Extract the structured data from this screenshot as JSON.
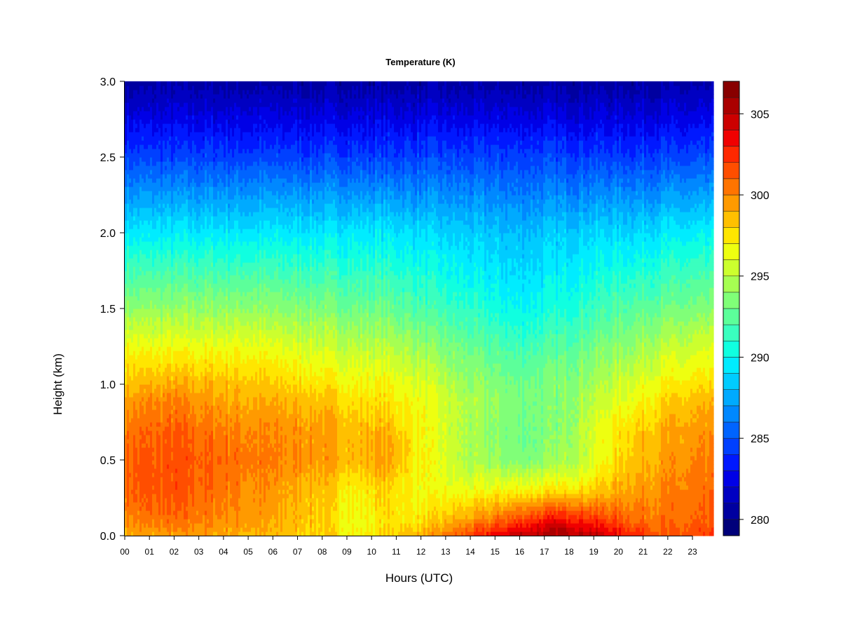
{
  "chart_data": {
    "type": "heatmap",
    "title": "Temperature (K)",
    "xlabel": "Hours (UTC)",
    "ylabel": "Height (km)",
    "x_ticks": [
      "00",
      "01",
      "02",
      "03",
      "04",
      "05",
      "06",
      "07",
      "08",
      "09",
      "10",
      "11",
      "12",
      "13",
      "14",
      "15",
      "16",
      "17",
      "18",
      "19",
      "20",
      "21",
      "22",
      "23"
    ],
    "xlim": [
      0,
      23.85
    ],
    "y_ticks": [
      "0.0",
      "0.5",
      "1.0",
      "1.5",
      "2.0",
      "2.5",
      "3.0"
    ],
    "ylim": [
      0,
      3.0
    ],
    "colorbar": {
      "ticks": [
        "280",
        "285",
        "290",
        "295",
        "300",
        "305"
      ],
      "range": [
        279,
        307
      ],
      "levels": [
        279,
        280,
        281,
        282,
        283,
        284,
        285,
        286,
        287,
        288,
        289,
        290,
        291,
        292,
        293,
        294,
        295,
        296,
        297,
        298,
        299,
        300,
        301,
        302,
        303,
        304,
        305,
        306,
        307
      ],
      "colors": [
        "#00007a",
        "#0000a0",
        "#0000c2",
        "#0000e6",
        "#0018ff",
        "#0040ff",
        "#0064ff",
        "#0088ff",
        "#00aaff",
        "#00ccff",
        "#00ecff",
        "#10ffe0",
        "#3affbf",
        "#5cff9a",
        "#80ff78",
        "#a6ff52",
        "#ccff2e",
        "#eeff10",
        "#ffe600",
        "#ffc000",
        "#ff9a00",
        "#ff7400",
        "#ff4e00",
        "#ff2800",
        "#f00000",
        "#cc0000",
        "#aa0000",
        "#880000"
      ]
    },
    "series": [
      {
        "name": "00",
        "x": 0,
        "profile_height_km": [
          0.0,
          0.1,
          0.3,
          0.5,
          0.7,
          0.9,
          1.0,
          1.2,
          1.5,
          2.0,
          2.5,
          3.0
        ],
        "profile_temp_K": [
          299,
          300,
          301,
          301,
          300.5,
          299.5,
          298.5,
          297,
          294,
          289.5,
          284.5,
          280.5
        ]
      },
      {
        "name": "02",
        "x": 2,
        "profile_height_km": [
          0.0,
          0.1,
          0.3,
          0.5,
          0.7,
          0.9,
          1.0,
          1.2,
          1.5,
          2.0,
          2.5,
          3.0
        ],
        "profile_temp_K": [
          299.5,
          300.5,
          301.5,
          301.5,
          301,
          300,
          299,
          297,
          294,
          289.5,
          284.5,
          280.5
        ]
      },
      {
        "name": "05",
        "x": 5,
        "profile_height_km": [
          0.0,
          0.1,
          0.3,
          0.5,
          0.7,
          0.9,
          1.0,
          1.2,
          1.5,
          2.0,
          2.5,
          3.0
        ],
        "profile_temp_K": [
          299,
          299.5,
          300,
          300.5,
          300,
          299,
          298.5,
          297,
          294,
          289.5,
          284.5,
          280.5
        ]
      },
      {
        "name": "08",
        "x": 8,
        "profile_height_km": [
          0.0,
          0.1,
          0.3,
          0.5,
          0.7,
          0.9,
          1.0,
          1.2,
          1.5,
          2.0,
          2.5,
          3.0
        ],
        "profile_temp_K": [
          298,
          298,
          298.5,
          299.5,
          299.5,
          298.5,
          297.5,
          296,
          293.5,
          289.5,
          284.5,
          280.5
        ]
      },
      {
        "name": "09",
        "x": 9.4,
        "profile_height_km": [
          0.0,
          0.1,
          0.3,
          0.5,
          0.7,
          0.9,
          1.0,
          1.2,
          1.5,
          2.0,
          2.5,
          3.0
        ],
        "profile_temp_K": [
          297,
          296.5,
          297,
          298.5,
          298.5,
          297.5,
          296.8,
          295.5,
          293,
          289.5,
          284.5,
          280.5
        ]
      },
      {
        "name": "10",
        "x": 10.5,
        "profile_height_km": [
          0.0,
          0.1,
          0.3,
          0.5,
          0.7,
          0.9,
          1.0,
          1.2,
          1.5,
          2.0,
          2.5,
          3.0
        ],
        "profile_temp_K": [
          298,
          297.5,
          298,
          299.5,
          299,
          297.5,
          297,
          295.5,
          293,
          289.5,
          284.5,
          280.5
        ]
      },
      {
        "name": "12",
        "x": 12,
        "profile_height_km": [
          0.0,
          0.1,
          0.3,
          0.5,
          0.7,
          0.9,
          1.0,
          1.2,
          1.5,
          2.0,
          2.5,
          3.0
        ],
        "profile_temp_K": [
          299,
          297.5,
          296.5,
          297,
          296.8,
          296.5,
          296,
          294.5,
          292,
          289,
          284.5,
          280.5
        ]
      },
      {
        "name": "14",
        "x": 14,
        "profile_height_km": [
          0.0,
          0.1,
          0.3,
          0.5,
          0.7,
          0.9,
          1.0,
          1.2,
          1.5,
          2.0,
          2.5,
          3.0
        ],
        "profile_temp_K": [
          302,
          299.5,
          296.5,
          294.5,
          294.5,
          294.5,
          294,
          293,
          291,
          288.5,
          284.5,
          280.5
        ]
      },
      {
        "name": "16",
        "x": 16,
        "profile_height_km": [
          0.0,
          0.1,
          0.3,
          0.5,
          0.7,
          0.9,
          1.0,
          1.2,
          1.5,
          2.0,
          2.5,
          3.0
        ],
        "profile_temp_K": [
          305,
          302,
          297,
          293.5,
          293,
          293.5,
          293,
          292,
          290,
          288,
          284.5,
          280.5
        ]
      },
      {
        "name": "17",
        "x": 17.5,
        "profile_height_km": [
          0.0,
          0.1,
          0.3,
          0.5,
          0.7,
          0.9,
          1.0,
          1.2,
          1.5,
          2.0,
          2.5,
          3.0
        ],
        "profile_temp_K": [
          306,
          303.5,
          297.5,
          294,
          293.5,
          293.5,
          293.5,
          292.5,
          290.5,
          288.5,
          284.5,
          280.5
        ]
      },
      {
        "name": "19",
        "x": 19,
        "profile_height_km": [
          0.0,
          0.1,
          0.3,
          0.5,
          0.7,
          0.9,
          1.0,
          1.2,
          1.5,
          2.0,
          2.5,
          3.0
        ],
        "profile_temp_K": [
          305,
          302.5,
          298,
          296,
          296,
          295,
          294.5,
          293.5,
          291.5,
          289,
          284.5,
          280.5
        ]
      },
      {
        "name": "20",
        "x": 20.5,
        "profile_height_km": [
          0.0,
          0.1,
          0.3,
          0.5,
          0.7,
          0.9,
          1.0,
          1.2,
          1.5,
          2.0,
          2.5,
          3.0
        ],
        "profile_temp_K": [
          303,
          301,
          299.5,
          298.5,
          298,
          296.5,
          296,
          294.5,
          292.5,
          289,
          284.5,
          280.5
        ]
      },
      {
        "name": "22",
        "x": 22,
        "profile_height_km": [
          0.0,
          0.1,
          0.3,
          0.5,
          0.7,
          0.9,
          1.0,
          1.2,
          1.5,
          2.0,
          2.5,
          3.0
        ],
        "profile_temp_K": [
          301,
          300.5,
          300,
          299.5,
          299,
          298,
          297,
          295.5,
          293,
          289.5,
          284.5,
          280.5
        ]
      },
      {
        "name": "23",
        "x": 23.85,
        "profile_height_km": [
          0.0,
          0.1,
          0.3,
          0.5,
          0.7,
          0.9,
          1.0,
          1.2,
          1.5,
          2.0,
          2.5,
          3.0
        ],
        "profile_temp_K": [
          302,
          301,
          300.5,
          300,
          299.5,
          298.5,
          297.5,
          296,
          293.5,
          289.5,
          284.5,
          280.5
        ]
      }
    ]
  }
}
